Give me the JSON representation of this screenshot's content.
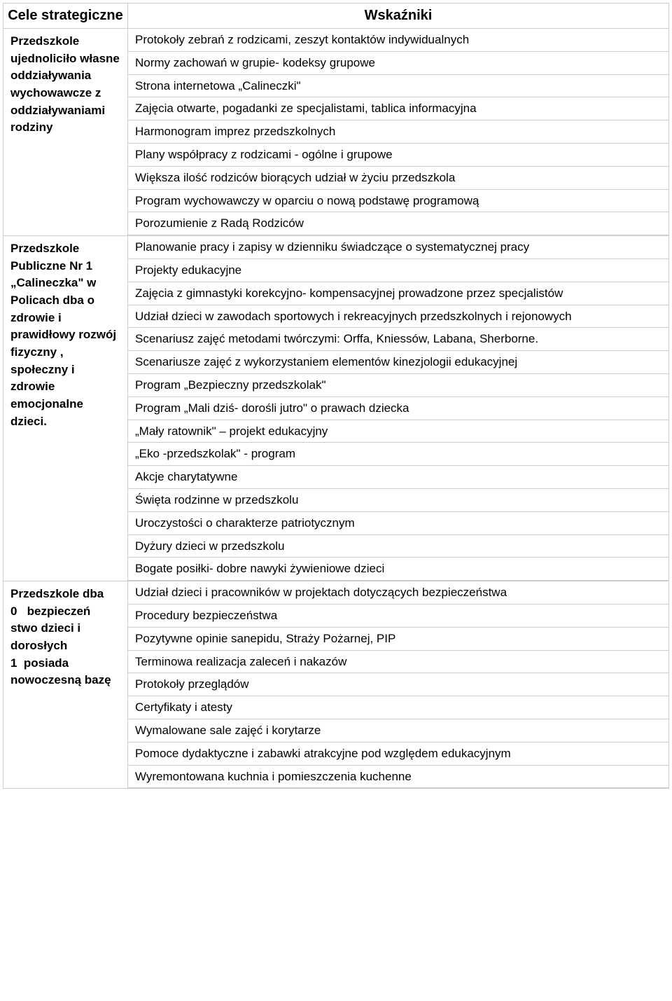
{
  "header": {
    "left": "Cele strategiczne",
    "right": "Wskaźniki"
  },
  "rows": [
    {
      "goal": "Przedszkole ujednoliciło własne oddziaływania wychowawcze z oddziaływaniami rodziny",
      "indicators": [
        "Protokoły zebrań z rodzicami, zeszyt kontaktów indywidualnych",
        "Normy zachowań w grupie- kodeksy grupowe",
        "Strona internetowa „Calineczki\"",
        "Zajęcia otwarte, pogadanki ze specjalistami, tablica informacyjna",
        "Harmonogram imprez przedszkolnych",
        "Plany współpracy z rodzicami - ogólne i grupowe",
        "Większa ilość rodziców biorących udział w życiu przedszkola",
        "Program wychowawczy w oparciu o nową podstawę programową",
        "Porozumienie z Radą Rodziców"
      ]
    },
    {
      "goal": "Przedszkole Publiczne Nr 1 „Calineczka\" w Policach dba o zdrowie i prawidłowy rozwój fizyczny , społeczny i zdrowie emocjonalne dzieci.",
      "indicators": [
        "Planowanie pracy i zapisy w dzienniku świadczące o systematycznej pracy",
        "Projekty edukacyjne",
        "Zajęcia z gimnastyki korekcyjno- kompensacyjnej prowadzone przez specjalistów",
        "Udział dzieci w zawodach sportowych i rekreacyjnych przedszkolnych i rejonowych",
        "Scenariusz zajęć metodami twórczymi: Orffa, Kniessów, Labana, Sherborne.",
        "Scenariusze zajęć z wykorzystaniem elementów kinezjologii edukacyjnej",
        "Program „Bezpieczny przedszkolak\"",
        "Program „Mali dziś- dorośli jutro\" o prawach dziecka",
        "„Mały ratownik\" – projekt edukacyjny",
        "„Eko -przedszkolak\" - program",
        "Akcje charytatywne",
        "Święta rodzinne w przedszkolu",
        "Uroczystości o charakterze patriotycznym",
        "Dyżury dzieci w przedszkolu",
        "Bogate posiłki- dobre nawyki żywieniowe dzieci"
      ],
      "tallIndex": 7
    },
    {
      "goal": "Przedszkole dba\n0   bezpieczeń\nstwo dzieci i dorosłych\n1  posiada nowoczesną bazę",
      "indicators": [
        "Udział dzieci i pracowników w projektach dotyczących bezpieczeństwa",
        "Procedury bezpieczeństwa",
        "Pozytywne opinie sanepidu, Straży Pożarnej, PIP",
        "Terminowa realizacja zaleceń i nakazów",
        "Protokoły przeglądów",
        "Certyfikaty i atesty",
        "Wymalowane sale zajęć i korytarze",
        "Pomoce dydaktyczne i zabawki atrakcyjne pod względem edukacyjnym",
        "Wyremontowana kuchnia i pomieszczenia kuchenne"
      ]
    }
  ]
}
